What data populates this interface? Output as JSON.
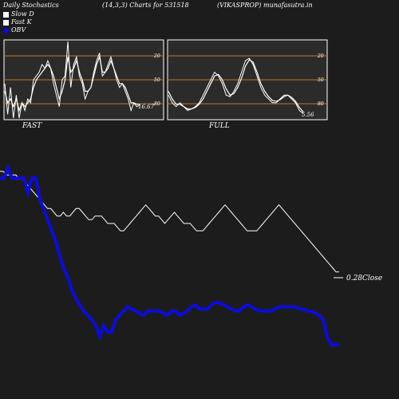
{
  "header": {
    "left": "Daily Stochastics",
    "center": "(14,3,3) Charts for 531518",
    "right": "(VIKASPROP) munafasutra.in"
  },
  "legend": {
    "slow_d": "Slow  D",
    "fast_k": "Fast K",
    "obv": "OBV"
  },
  "colors": {
    "background": "#1c1c1c",
    "panel": "#2b2b2b",
    "level_line": "#c07820",
    "stoch_line": "#ffffff",
    "close_line": "#ffffff",
    "obv_line": "#0b0bdd"
  },
  "chart_data": [
    {
      "type": "line",
      "panel": "FAST",
      "title": "FAST",
      "ylim": [
        0,
        100
      ],
      "levels": [
        20,
        50,
        80
      ],
      "yticks": [
        "80",
        "50",
        "20"
      ],
      "last_label": "16.67",
      "series": [
        {
          "role": "fast_k",
          "values": [
            45,
            5,
            40,
            0,
            30,
            0,
            20,
            10,
            25,
            20,
            50,
            55,
            60,
            70,
            65,
            75,
            65,
            45,
            30,
            15,
            50,
            55,
            100,
            40,
            70,
            80,
            55,
            45,
            25,
            35,
            40,
            60,
            75,
            85,
            55,
            60,
            70,
            80,
            65,
            50,
            40,
            45,
            35,
            25,
            10,
            20,
            15,
            17
          ]
        },
        {
          "role": "slow_d",
          "values": [
            35,
            20,
            25,
            15,
            25,
            10,
            20,
            15,
            20,
            25,
            40,
            50,
            55,
            60,
            65,
            70,
            65,
            55,
            40,
            25,
            35,
            50,
            80,
            60,
            65,
            75,
            60,
            50,
            35,
            35,
            40,
            55,
            70,
            80,
            60,
            60,
            65,
            75,
            65,
            55,
            45,
            45,
            40,
            30,
            20,
            20,
            18,
            18
          ]
        }
      ]
    },
    {
      "type": "line",
      "panel": "FULL",
      "title": "FULL",
      "ylim": [
        0,
        100
      ],
      "levels": [
        20,
        50,
        80
      ],
      "yticks": [
        "80",
        "50",
        "20"
      ],
      "last_label": "5.56",
      "series": [
        {
          "role": "k",
          "values": [
            30,
            20,
            15,
            20,
            15,
            10,
            12,
            15,
            20,
            30,
            40,
            50,
            60,
            55,
            45,
            30,
            28,
            35,
            45,
            60,
            75,
            78,
            70,
            55,
            40,
            30,
            25,
            20,
            20,
            25,
            30,
            30,
            25,
            20,
            10,
            6
          ]
        },
        {
          "role": "d",
          "values": [
            35,
            25,
            18,
            18,
            15,
            12,
            12,
            14,
            18,
            25,
            35,
            45,
            55,
            57,
            50,
            38,
            30,
            32,
            40,
            52,
            68,
            76,
            73,
            60,
            45,
            35,
            28,
            23,
            22,
            24,
            28,
            30,
            27,
            22,
            14,
            8
          ]
        }
      ]
    },
    {
      "type": "line",
      "panel": "PRICE_OBV",
      "last_label": "0.28Close",
      "series": [
        {
          "name": "Close",
          "role": "close",
          "values": [
            0.55,
            0.55,
            0.54,
            0.54,
            0.54,
            0.54,
            0.53,
            0.53,
            0.52,
            0.51,
            0.5,
            0.49,
            0.48,
            0.47,
            0.46,
            0.45,
            0.45,
            0.44,
            0.43,
            0.43,
            0.44,
            0.43,
            0.43,
            0.44,
            0.45,
            0.45,
            0.44,
            0.43,
            0.42,
            0.42,
            0.43,
            0.43,
            0.43,
            0.42,
            0.41,
            0.41,
            0.41,
            0.4,
            0.39,
            0.39,
            0.4,
            0.41,
            0.42,
            0.43,
            0.44,
            0.45,
            0.46,
            0.45,
            0.44,
            0.43,
            0.43,
            0.42,
            0.41,
            0.42,
            0.43,
            0.44,
            0.43,
            0.42,
            0.41,
            0.41,
            0.41,
            0.4,
            0.39,
            0.39,
            0.39,
            0.4,
            0.41,
            0.42,
            0.43,
            0.44,
            0.45,
            0.46,
            0.45,
            0.44,
            0.43,
            0.42,
            0.41,
            0.4,
            0.39,
            0.39,
            0.39,
            0.39,
            0.4,
            0.41,
            0.42,
            0.43,
            0.44,
            0.45,
            0.46,
            0.45,
            0.44,
            0.43,
            0.42,
            0.41,
            0.4,
            0.39,
            0.38,
            0.37,
            0.36,
            0.35,
            0.34,
            0.33,
            0.32,
            0.31,
            0.3,
            0.29,
            0.28,
            0.28
          ]
        },
        {
          "name": "OBV",
          "role": "obv",
          "values": [
            85,
            85,
            90,
            85,
            85,
            85,
            85,
            78,
            85,
            85,
            75,
            70,
            65,
            60,
            55,
            48,
            42,
            38,
            32,
            28,
            25,
            22,
            20,
            18,
            15,
            10,
            15,
            12,
            12,
            18,
            20,
            22,
            24,
            23,
            22,
            21,
            20,
            22,
            22,
            22,
            22,
            21,
            20,
            22,
            22,
            20,
            21,
            22,
            24,
            25,
            23,
            23,
            23,
            25,
            26,
            26,
            25,
            24,
            23,
            22,
            22,
            24,
            25,
            24,
            23,
            22,
            22,
            22,
            22,
            23,
            24,
            24,
            24,
            24,
            24,
            23,
            23,
            22,
            22,
            21,
            20,
            18,
            10,
            6,
            6,
            6
          ]
        }
      ]
    }
  ],
  "panel_labels": {
    "fast": "FAST",
    "full": "FULL"
  }
}
